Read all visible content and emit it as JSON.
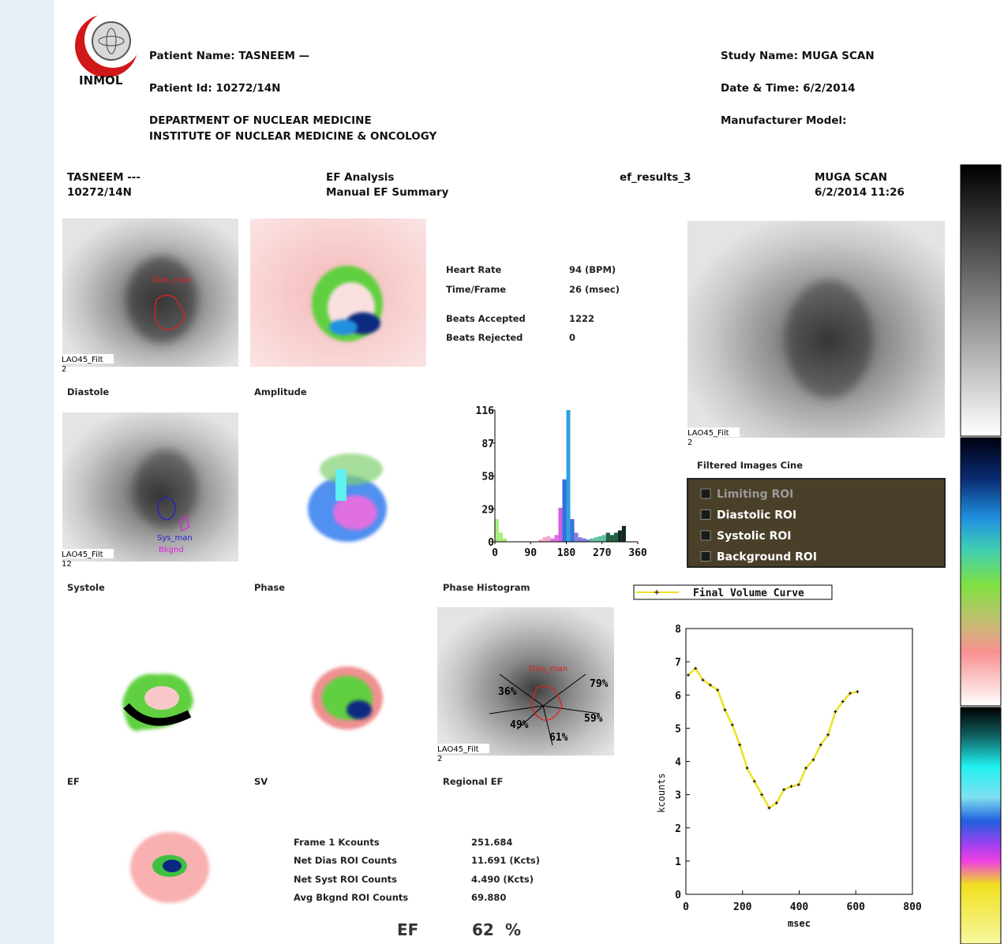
{
  "header": {
    "logo_text": "INMOL",
    "patient_name": "Patient Name: TASNEEM —",
    "patient_id": "Patient Id: 10272/14N",
    "department": "DEPARTMENT OF NUCLEAR MEDICINE",
    "institute": "INSTITUTE OF NUCLEAR MEDICINE & ONCOLOGY",
    "study_name": "Study Name: MUGA SCAN",
    "date_time": "Date & Time: 6/2/2014",
    "manufacturer": "Manufacturer Model:"
  },
  "report_header": {
    "patient": "TASNEEM ---",
    "patient_id": "10272/14N",
    "analysis": "EF Analysis",
    "subtitle": "Manual EF Summary",
    "file": "ef_results_3",
    "study": "MUGA SCAN",
    "date_time": "6/2/2014 11:26"
  },
  "stats": [
    {
      "label": "Heart Rate",
      "value": "94  (BPM)"
    },
    {
      "label": "Time/Frame",
      "value": "26   (msec)"
    },
    {
      "label": "Beats Accepted",
      "value": "1222"
    },
    {
      "label": "Beats Rejected",
      "value": "0"
    }
  ],
  "panels": {
    "diastole": "Diastole",
    "amplitude": "Amplitude",
    "systole": "Systole",
    "phase": "Phase",
    "phase_histogram": "Phase Histogram",
    "ef": "EF",
    "sv": "SV",
    "regional_ef": "Regional EF",
    "cine": "Filtered Images Cine"
  },
  "image_labels": {
    "view": "LAO45_Filt",
    "frame_diastole": "2",
    "frame_systole": "12",
    "frame_cine": "2",
    "frame_regional": "2",
    "dias_roi": "Dias_man",
    "sys_roi": "Sys_man",
    "bkgnd_roi": "Bkgnd"
  },
  "regional_ef": [
    "36%",
    "79%",
    "59%",
    "61%",
    "49%"
  ],
  "roi_options": [
    "Limiting ROI",
    "Diastolic ROI",
    "Systolic ROI",
    "Background ROI"
  ],
  "counts": [
    {
      "label": "Frame 1 Kcounts",
      "value": "251.684"
    },
    {
      "label": "Net Dias ROI Counts",
      "value": "11.691 (Kcts)"
    },
    {
      "label": "Net Syst ROI Counts",
      "value": "4.490  (Kcts)"
    },
    {
      "label": "Avg Bkgnd ROI Counts",
      "value": "69.880"
    }
  ],
  "ef": {
    "label": "EF",
    "value": "62",
    "unit": "%"
  },
  "phase_histogram": {
    "type": "histogram",
    "bins": [
      0,
      10,
      20,
      30,
      40,
      50,
      60,
      70,
      80,
      90,
      100,
      110,
      120,
      130,
      140,
      150,
      160,
      170,
      180,
      190,
      200,
      210,
      220,
      230,
      240,
      250,
      260,
      270,
      280,
      290,
      300,
      310,
      320,
      330,
      340,
      350,
      360
    ],
    "values": [
      20,
      8,
      3,
      0,
      0,
      0,
      0,
      0,
      0,
      0,
      0,
      2,
      4,
      5,
      3,
      6,
      30,
      55,
      116,
      20,
      8,
      4,
      3,
      2,
      3,
      4,
      5,
      6,
      8,
      6,
      8,
      10,
      14,
      0,
      0,
      0
    ],
    "colors": [
      "#a8f080",
      "#a8f080",
      "#a8f080",
      "#a8f080",
      "#a8f080",
      "#a8f080",
      "#a8f080",
      "#a8f080",
      "#a8f080",
      "#a8f080",
      "#a8f080",
      "#f0a8d0",
      "#f0a8d0",
      "#f0a8d0",
      "#e070e0",
      "#e070e0",
      "#d060e0",
      "#3070e0",
      "#30a0e0",
      "#4070d8",
      "#8080e0",
      "#8080e0",
      "#8080e0",
      "#8080e0",
      "#60c0a0",
      "#60c0a0",
      "#60c0a0",
      "#60c0a0",
      "#206040",
      "#206040",
      "#206040",
      "#102820",
      "#102820",
      "#102820",
      "#102820",
      "#102820"
    ],
    "xlim": [
      0,
      360
    ],
    "ylim": [
      0,
      116
    ],
    "xticks": [
      0,
      90,
      180,
      270,
      360
    ],
    "yticks": [
      0,
      29,
      58,
      87,
      116
    ]
  },
  "volume_curve": {
    "type": "line",
    "x_label": "msec",
    "y_label": "kcounts",
    "x": [
      8,
      34,
      60,
      86,
      112,
      138,
      164,
      190,
      216,
      242,
      268,
      294,
      320,
      346,
      372,
      398,
      424,
      450,
      476,
      502,
      528,
      554,
      580,
      606
    ],
    "series": [
      {
        "name": "Final Volume Curve",
        "color": "#f0e020",
        "values": [
          6.6,
          6.8,
          6.45,
          6.3,
          6.15,
          5.55,
          5.1,
          4.5,
          3.8,
          3.4,
          3.0,
          2.6,
          2.75,
          3.15,
          3.25,
          3.3,
          3.8,
          4.05,
          4.5,
          4.8,
          5.5,
          5.8,
          6.05,
          6.1
        ]
      }
    ],
    "xlim": [
      0,
      800
    ],
    "ylim": [
      0,
      8
    ],
    "xticks": [
      0,
      200,
      400,
      600,
      800
    ],
    "yticks": [
      0,
      1,
      2,
      3,
      4,
      5,
      6,
      7,
      8
    ]
  }
}
